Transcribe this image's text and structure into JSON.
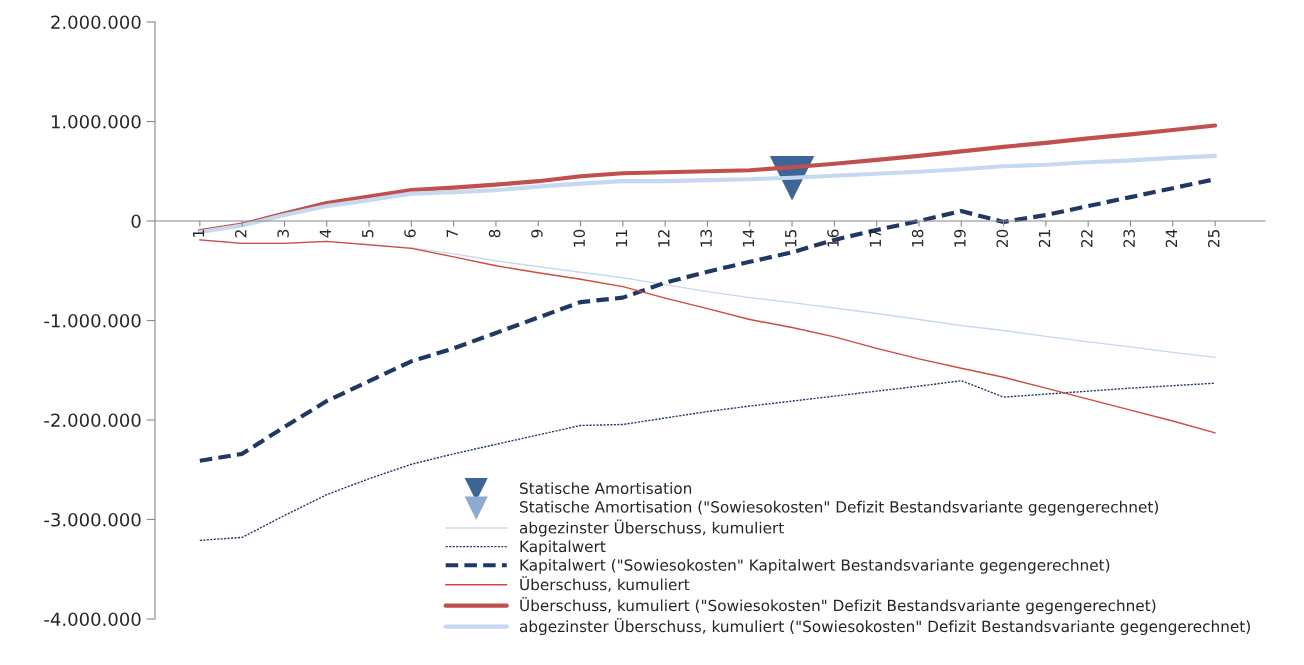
{
  "chart_data": {
    "type": "line",
    "categories": [
      "1",
      "2",
      "3",
      "4",
      "5",
      "6",
      "7",
      "8",
      "9",
      "10",
      "11",
      "12",
      "13",
      "14",
      "15",
      "16",
      "17",
      "18",
      "19",
      "20",
      "21",
      "22",
      "23",
      "24",
      "25"
    ],
    "ylim": [
      -4000000,
      2000000
    ],
    "yticks": [
      {
        "value": -4000000,
        "label": "-4.000.000"
      },
      {
        "value": -3000000,
        "label": "-3.000.000"
      },
      {
        "value": -2000000,
        "label": "-2.000.000"
      },
      {
        "value": -1000000,
        "label": "-1.000.000"
      },
      {
        "value": 0,
        "label": "0"
      },
      {
        "value": 1000000,
        "label": "1.000.000"
      },
      {
        "value": 2000000,
        "label": "2.000.000"
      }
    ],
    "grid": false,
    "legend": "bottom right",
    "series": [
      {
        "name": "Statische Amortisation",
        "type": "scatter",
        "marker": "triangle",
        "color": "#3d6596",
        "values": [
          null,
          null,
          null,
          null,
          null,
          null,
          null,
          null,
          null,
          null,
          null,
          null,
          null,
          null,
          440000,
          null,
          null,
          null,
          null,
          null,
          null,
          null,
          null,
          null,
          null
        ]
      },
      {
        "name": "Statische Amortisation (\"Sowiesokosten\" Defizit Bestandsvariante gegengerechnet)",
        "type": "scatter",
        "marker": "triangle",
        "color": "#8eaad2",
        "values": [
          null,
          null,
          null,
          null,
          null,
          null,
          null,
          null,
          null,
          null,
          null,
          null,
          null,
          null,
          null,
          null,
          null,
          null,
          null,
          null,
          null,
          null,
          null,
          null,
          null
        ]
      },
      {
        "name": "abgezinster Überschuss, kumuliert",
        "color": "#c6d9f1",
        "line_style": "solid",
        "values": [
          -190000,
          -225000,
          -225000,
          -205000,
          -235000,
          -270000,
          -330000,
          -400000,
          -460000,
          -515000,
          -570000,
          -640000,
          -710000,
          -770000,
          -820000,
          -875000,
          -930000,
          -990000,
          -1050000,
          -1100000,
          -1160000,
          -1215000,
          -1265000,
          -1320000,
          -1370000
        ]
      },
      {
        "name": "Kapitalwert",
        "color": "#1f3864",
        "line_style": "dotted",
        "values": [
          -3210000,
          -3180000,
          -2960000,
          -2750000,
          -2590000,
          -2445000,
          -2340000,
          -2245000,
          -2150000,
          -2055000,
          -2045000,
          -1980000,
          -1915000,
          -1860000,
          -1810000,
          -1760000,
          -1710000,
          -1660000,
          -1605000,
          -1770000,
          -1740000,
          -1710000,
          -1680000,
          -1655000,
          -1630000
        ]
      },
      {
        "name": "Kapitalwert (\"Sowiesokosten\" Kapitalwert Bestandsvariante gegengerechnet)",
        "color": "#1f3864",
        "line_style": "dashed",
        "values": [
          -2410000,
          -2340000,
          -2070000,
          -1810000,
          -1610000,
          -1410000,
          -1280000,
          -1125000,
          -970000,
          -815000,
          -770000,
          -620000,
          -510000,
          -410000,
          -315000,
          -190000,
          -90000,
          0,
          100000,
          -10000,
          60000,
          150000,
          240000,
          330000,
          420000
        ]
      },
      {
        "name": "Überschuss, kumuliert",
        "color": "#d04a3f",
        "line_style": "solid",
        "values": [
          -190000,
          -225000,
          -225000,
          -205000,
          -240000,
          -275000,
          -360000,
          -450000,
          -520000,
          -585000,
          -660000,
          -775000,
          -880000,
          -990000,
          -1070000,
          -1165000,
          -1280000,
          -1385000,
          -1480000,
          -1570000,
          -1680000,
          -1790000,
          -1900000,
          -2010000,
          -2130000
        ]
      },
      {
        "name": "Überschuss, kumuliert (\"Sowiesokosten\" Defizit Bestandsvariante gegengerechnet)",
        "color": "#c0504d",
        "line_style": "solid",
        "values": [
          -100000,
          -35000,
          75000,
          180000,
          245000,
          310000,
          335000,
          365000,
          400000,
          450000,
          480000,
          490000,
          500000,
          510000,
          540000,
          575000,
          615000,
          655000,
          700000,
          745000,
          785000,
          830000,
          870000,
          915000,
          960000
        ]
      },
      {
        "name": "abgezinster Überschuss, kumuliert (\"Sowiesokosten\" Defizit Bestandsvariante gegengerechnet)",
        "color": "#c6d9f1",
        "line_style": "solid",
        "values": [
          -110000,
          -45000,
          60000,
          150000,
          210000,
          275000,
          290000,
          310000,
          345000,
          375000,
          400000,
          400000,
          410000,
          420000,
          435000,
          455000,
          475000,
          495000,
          520000,
          550000,
          565000,
          590000,
          610000,
          635000,
          655000
        ]
      }
    ]
  }
}
